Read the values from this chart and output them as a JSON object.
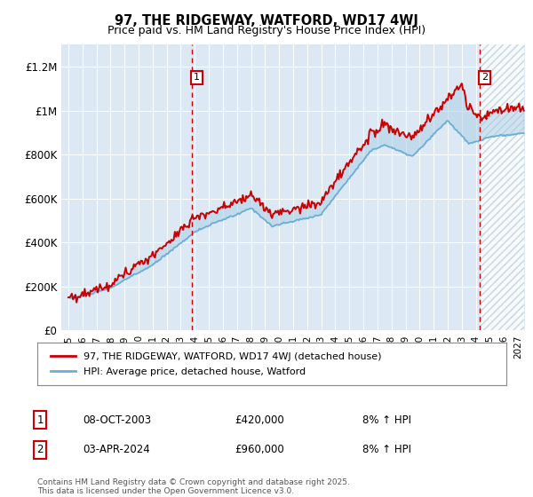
{
  "title": "97, THE RIDGEWAY, WATFORD, WD17 4WJ",
  "subtitle": "Price paid vs. HM Land Registry's House Price Index (HPI)",
  "ylabel_ticks": [
    "£0",
    "£200K",
    "£400K",
    "£600K",
    "£800K",
    "£1M",
    "£1.2M"
  ],
  "ytick_vals": [
    0,
    200000,
    400000,
    600000,
    800000,
    1000000,
    1200000
  ],
  "ylim": [
    0,
    1300000
  ],
  "xlim_start": 1994.5,
  "xlim_end": 2027.5,
  "bg_color": "#dce9f5",
  "hatch_color": "#c8d8e8",
  "line_color_hpi": "#6baed6",
  "line_color_price": "#cc0000",
  "fill_color_hpi": "#a8cce4",
  "marker1_x": 2003.77,
  "marker1_y": 420000,
  "marker2_x": 2024.25,
  "marker2_y": 960000,
  "legend_label1": "97, THE RIDGEWAY, WATFORD, WD17 4WJ (detached house)",
  "legend_label2": "HPI: Average price, detached house, Watford",
  "note1_label": "1",
  "note1_date": "08-OCT-2003",
  "note1_price": "£420,000",
  "note1_detail": "8% ↑ HPI",
  "note2_label": "2",
  "note2_date": "03-APR-2024",
  "note2_price": "£960,000",
  "note2_detail": "8% ↑ HPI",
  "footer": "Contains HM Land Registry data © Crown copyright and database right 2025.\nThis data is licensed under the Open Government Licence v3.0."
}
